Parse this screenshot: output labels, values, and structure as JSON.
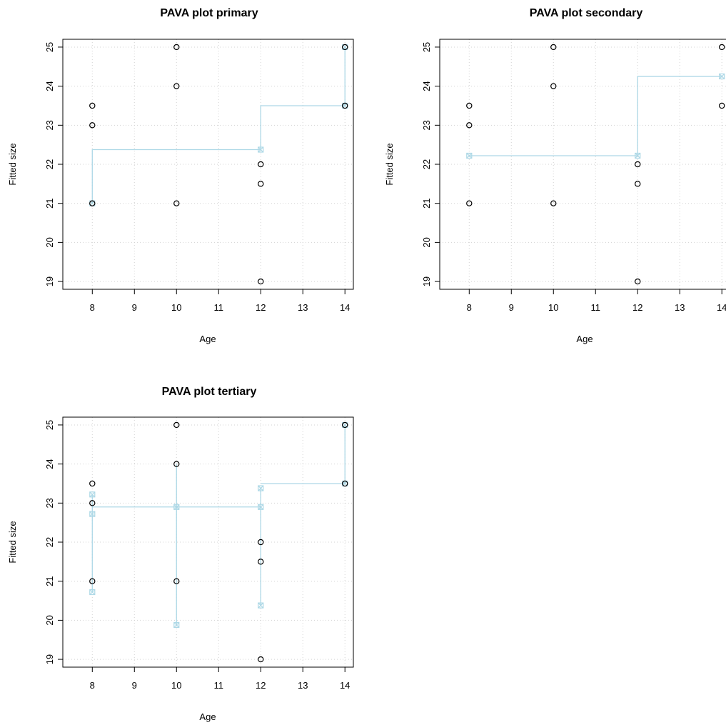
{
  "figure": {
    "panels": [
      {
        "title": "PAVA plot primary",
        "xlabel": "Age",
        "ylabel": "Fitted size"
      },
      {
        "title": "PAVA plot secondary",
        "xlabel": "Age",
        "ylabel": "Fitted size"
      },
      {
        "title": "PAVA plot tertiary",
        "xlabel": "Age",
        "ylabel": "Fitted size"
      }
    ]
  },
  "chart_data": [
    {
      "type": "scatter",
      "title": "PAVA plot primary",
      "xlabel": "Age",
      "ylabel": "Fitted size",
      "xlim": [
        7.3,
        14.2
      ],
      "ylim": [
        18.8,
        25.2
      ],
      "xticks": [
        8,
        9,
        10,
        11,
        12,
        13,
        14
      ],
      "yticks": [
        19,
        20,
        21,
        22,
        23,
        24,
        25
      ],
      "grid": true,
      "colors": {
        "points": "#000000",
        "fit": "#add8e6"
      },
      "points": {
        "x": [
          8,
          8,
          8,
          10,
          10,
          10,
          12,
          12,
          12,
          14,
          14
        ],
        "y": [
          23.5,
          23,
          21,
          25,
          24,
          21,
          22,
          21.5,
          19,
          25,
          23.5
        ]
      },
      "fit_line": {
        "x": [
          8,
          8,
          12,
          12,
          14,
          14
        ],
        "y": [
          21,
          22.375,
          22.375,
          23.5,
          23.5,
          25
        ]
      },
      "fit_markers": {
        "x": [
          8,
          12,
          14,
          14
        ],
        "y": [
          21,
          22.375,
          23.5,
          25
        ]
      }
    },
    {
      "type": "scatter",
      "title": "PAVA plot secondary",
      "xlabel": "Age",
      "ylabel": "Fitted size",
      "xlim": [
        7.3,
        14.2
      ],
      "ylim": [
        18.8,
        25.2
      ],
      "xticks": [
        8,
        9,
        10,
        11,
        12,
        13,
        14
      ],
      "yticks": [
        19,
        20,
        21,
        22,
        23,
        24,
        25
      ],
      "grid": true,
      "colors": {
        "points": "#000000",
        "fit": "#add8e6"
      },
      "points": {
        "x": [
          8,
          8,
          8,
          10,
          10,
          10,
          12,
          12,
          12,
          14,
          14
        ],
        "y": [
          23.5,
          23,
          21,
          25,
          24,
          21,
          22,
          21.5,
          19,
          25,
          23.5
        ]
      },
      "fit_line": {
        "x": [
          8,
          12,
          12,
          14
        ],
        "y": [
          22.22,
          22.22,
          24.25,
          24.25
        ]
      },
      "fit_markers": {
        "x": [
          8,
          12,
          14
        ],
        "y": [
          22.22,
          22.22,
          24.25
        ]
      }
    },
    {
      "type": "scatter",
      "title": "PAVA plot tertiary",
      "xlabel": "Age",
      "ylabel": "Fitted size",
      "xlim": [
        7.3,
        14.2
      ],
      "ylim": [
        18.8,
        25.2
      ],
      "xticks": [
        8,
        9,
        10,
        11,
        12,
        13,
        14
      ],
      "yticks": [
        19,
        20,
        21,
        22,
        23,
        24,
        25
      ],
      "grid": true,
      "colors": {
        "points": "#000000",
        "fit": "#add8e6"
      },
      "points": {
        "x": [
          8,
          8,
          8,
          10,
          10,
          10,
          12,
          12,
          12,
          14,
          14
        ],
        "y": [
          23.5,
          23,
          21,
          25,
          24,
          21,
          22,
          21.5,
          19,
          25,
          23.5
        ]
      },
      "fit_segments": [
        {
          "x": [
            8,
            8
          ],
          "y": [
            20.72,
            23.22
          ]
        },
        {
          "x": [
            8,
            12
          ],
          "y": [
            22.9,
            22.9
          ]
        },
        {
          "x": [
            10,
            10
          ],
          "y": [
            19.88,
            24
          ]
        },
        {
          "x": [
            12,
            12
          ],
          "y": [
            20.38,
            23.38
          ]
        },
        {
          "x": [
            12,
            14,
            14
          ],
          "y": [
            23.5,
            23.5,
            25
          ]
        }
      ],
      "fit_markers": {
        "x": [
          8,
          8,
          8,
          10,
          12,
          12,
          12,
          10,
          14,
          14
        ],
        "y": [
          23.22,
          22.72,
          20.72,
          22.9,
          23.38,
          22.9,
          20.38,
          19.88,
          23.5,
          25
        ]
      }
    }
  ]
}
